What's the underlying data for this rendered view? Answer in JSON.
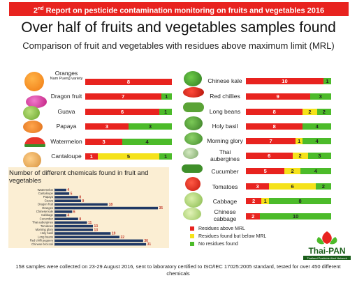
{
  "banner": {
    "nth": "2",
    "nth_suffix": "nd",
    "text": " Report on pesticide contamination monitoring on fruits and vegetables 2016"
  },
  "headline": "Over half of fruits and vegetables samples found",
  "subheadline": "Comparison of fruit and vegetables with residues above maximum limit (MRL)",
  "colors": {
    "red": "#e8231f",
    "yellow": "#f5e21a",
    "green": "#4cbb2a",
    "inset_bar": "#1f3864",
    "inset_bg": "#fbeed3"
  },
  "chart_data": [
    {
      "type": "bar",
      "stacked": true,
      "orientation": "horizontal",
      "categories": [
        "Oranges",
        "Dragon fruit",
        "Guava",
        "Papaya",
        "Watermelon",
        "Cantaloupe"
      ],
      "category_notes": {
        "Oranges": "Nam Pueng variety"
      },
      "series": [
        {
          "name": "Residues above MRL",
          "color": "#e8231f",
          "values": [
            8,
            7,
            6,
            3,
            3,
            1
          ]
        },
        {
          "name": "Residues found but below MRL",
          "color": "#f5e21a",
          "values": [
            0,
            0,
            0,
            0,
            0,
            5
          ]
        },
        {
          "name": "No residues found",
          "color": "#4cbb2a",
          "values": [
            0,
            1,
            1,
            3,
            4,
            1
          ]
        }
      ]
    },
    {
      "type": "bar",
      "stacked": true,
      "orientation": "horizontal",
      "categories": [
        "Chinese kale",
        "Red chillies",
        "Long beans",
        "Holy basil",
        "Morning glory",
        "Thai aubergines",
        "Cucumber",
        "Tomatoes",
        "Cabbage",
        "Chinese cabbage"
      ],
      "series": [
        {
          "name": "Residues above MRL",
          "color": "#e8231f",
          "values": [
            10,
            9,
            8,
            8,
            7,
            6,
            5,
            3,
            2,
            2
          ]
        },
        {
          "name": "Residues found but below MRL",
          "color": "#f5e21a",
          "values": [
            0,
            0,
            2,
            0,
            1,
            2,
            2,
            6,
            1,
            0
          ]
        },
        {
          "name": "No residues found",
          "color": "#4cbb2a",
          "values": [
            1,
            3,
            2,
            4,
            4,
            3,
            4,
            2,
            8,
            10
          ]
        }
      ]
    },
    {
      "type": "bar",
      "orientation": "horizontal",
      "title": "Number of different chemicals found in fruit and vegetables",
      "categories": [
        "Watermelon",
        "Cantaloupe",
        "Papaya",
        "Guava",
        "Dragon fruit",
        "Oranges",
        "Chinese kale",
        "Cabbage",
        "Cucumber",
        "Thai aubergines",
        "Tomatoes",
        "Morning glory",
        "Holy basil",
        "Long beans",
        "Red chilli peppers",
        "Chinese broccoli"
      ],
      "values": [
        4,
        5,
        8,
        9,
        18,
        35,
        6,
        4,
        8,
        11,
        13,
        13,
        19,
        22,
        30,
        31
      ],
      "xlim": [
        0,
        35
      ]
    }
  ],
  "legend": {
    "items": [
      "Residues above MRL",
      "Residues found but below MRL",
      "No residues found"
    ]
  },
  "logo": {
    "name": "Thai-PAN",
    "tagline": "Thailand Pesticide Alert Network"
  },
  "footer": "158 samples were collected on 23-29 August 2016, sent to laboratory certified to ISO/IEC 17025:2005 standard, tested for over 450 different chemicals"
}
